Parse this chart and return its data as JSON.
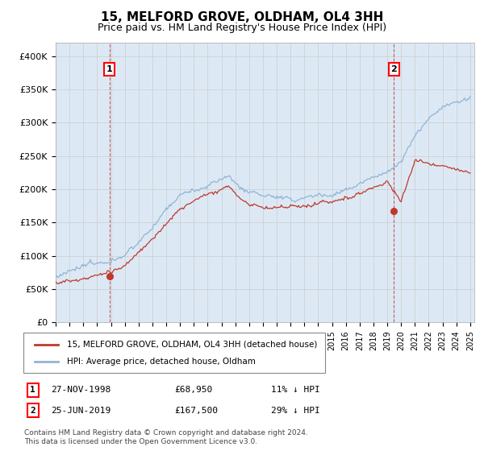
{
  "title": "15, MELFORD GROVE, OLDHAM, OL4 3HH",
  "subtitle": "Price paid vs. HM Land Registry's House Price Index (HPI)",
  "ylim": [
    0,
    420000
  ],
  "yticks": [
    0,
    50000,
    100000,
    150000,
    200000,
    250000,
    300000,
    350000,
    400000
  ],
  "ytick_labels": [
    "£0",
    "£50K",
    "£100K",
    "£150K",
    "£200K",
    "£250K",
    "£300K",
    "£350K",
    "£400K"
  ],
  "hpi_color": "#92b4d4",
  "hpi_fill_color": "#dce9f5",
  "price_color": "#c0392b",
  "sale1_date": 1998.9,
  "sale1_price": 68950,
  "sale2_date": 2019.48,
  "sale2_price": 167500,
  "legend_line1": "15, MELFORD GROVE, OLDHAM, OL4 3HH (detached house)",
  "legend_line2": "HPI: Average price, detached house, Oldham",
  "footer": "Contains HM Land Registry data © Crown copyright and database right 2024.\nThis data is licensed under the Open Government Licence v3.0.",
  "background_color": "#ffffff",
  "grid_color": "#cccccc",
  "title_fontsize": 11,
  "subtitle_fontsize": 9
}
